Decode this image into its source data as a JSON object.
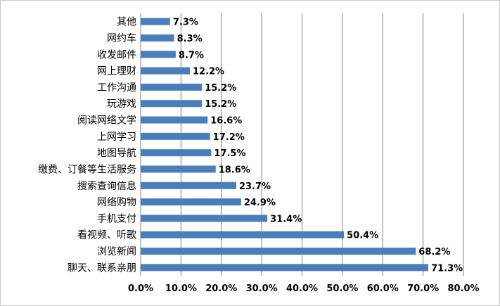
{
  "chart_data": {
    "type": "bar",
    "orientation": "horizontal",
    "categories": [
      "其他",
      "网约车",
      "收发邮件",
      "网上理财",
      "工作沟通",
      "玩游戏",
      "阅读网络文学",
      "上网学习",
      "地图导航",
      "缴费、订餐等生活服务",
      "搜索查询信息",
      "网络购物",
      "手机支付",
      "看视频、听歌",
      "浏览新闻",
      "聊天、联系亲朋"
    ],
    "values": [
      7.3,
      8.3,
      8.7,
      12.2,
      15.2,
      15.2,
      16.6,
      17.2,
      17.5,
      18.6,
      23.7,
      24.9,
      31.4,
      50.4,
      68.2,
      71.3
    ],
    "value_labels": [
      "7.3%",
      "8.3%",
      "8.7%",
      "12.2%",
      "15.2%",
      "15.2%",
      "16.6%",
      "17.2%",
      "17.5%",
      "18.6%",
      "23.7%",
      "24.9%",
      "31.4%",
      "50.4%",
      "68.2%",
      "71.3%"
    ],
    "x_ticks": [
      0,
      10,
      20,
      30,
      40,
      50,
      60,
      70,
      80
    ],
    "x_tick_labels": [
      "0.0%",
      "10.0%",
      "20.0%",
      "30.0%",
      "40.0%",
      "50.0%",
      "60.0%",
      "70.0%",
      "80.0%"
    ],
    "xlim": [
      0,
      80
    ],
    "grid": true,
    "legend": "none",
    "title": "",
    "xlabel": "",
    "ylabel": "",
    "colors": {
      "bar": "#4a7ebb",
      "grid": "#808080",
      "axis": "#808080",
      "frame": "#c8c8c8"
    }
  }
}
